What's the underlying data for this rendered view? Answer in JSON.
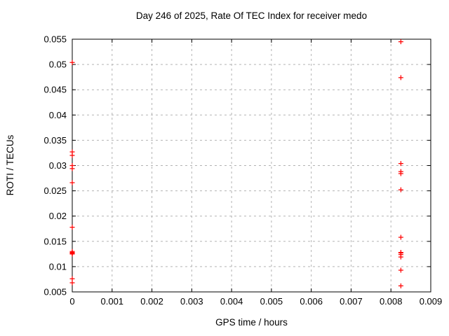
{
  "chart_data": {
    "type": "scatter",
    "title": "Day 246 of 2025, Rate Of TEC Index for receiver medo",
    "xlabel": "GPS time / hours",
    "ylabel": "ROTI / TECUs",
    "xlim": [
      0,
      0.009
    ],
    "ylim": [
      0.005,
      0.055
    ],
    "grid": true,
    "legend": "none",
    "marker": "plus",
    "marker_color": "#ff0000",
    "grid_color": "#b3b3b3",
    "axis_color": "#000000",
    "background": "#ffffff",
    "xticks": [
      {
        "value": 0,
        "label": "0"
      },
      {
        "value": 0.001,
        "label": "0.001"
      },
      {
        "value": 0.002,
        "label": "0.002"
      },
      {
        "value": 0.003,
        "label": "0.003"
      },
      {
        "value": 0.004,
        "label": "0.004"
      },
      {
        "value": 0.005,
        "label": "0.005"
      },
      {
        "value": 0.006,
        "label": "0.006"
      },
      {
        "value": 0.007,
        "label": "0.007"
      },
      {
        "value": 0.008,
        "label": "0.008"
      },
      {
        "value": 0.009,
        "label": "0.009"
      }
    ],
    "yticks": [
      {
        "value": 0.005,
        "label": "0.005"
      },
      {
        "value": 0.01,
        "label": "0.01"
      },
      {
        "value": 0.015,
        "label": "0.015"
      },
      {
        "value": 0.02,
        "label": "0.02"
      },
      {
        "value": 0.025,
        "label": "0.025"
      },
      {
        "value": 0.03,
        "label": "0.03"
      },
      {
        "value": 0.035,
        "label": "0.035"
      },
      {
        "value": 0.04,
        "label": "0.04"
      },
      {
        "value": 0.045,
        "label": "0.045"
      },
      {
        "value": 0.05,
        "label": "0.05"
      },
      {
        "value": 0.055,
        "label": "0.055"
      }
    ],
    "series": [
      {
        "name": "ROTI",
        "points": [
          [
            0,
            0.0504
          ],
          [
            0,
            0.0327
          ],
          [
            0,
            0.032
          ],
          [
            0,
            0.03
          ],
          [
            0,
            0.0294
          ],
          [
            0,
            0.0266
          ],
          [
            0,
            0.0178
          ],
          [
            0,
            0.013
          ],
          [
            0,
            0.0128
          ],
          [
            0,
            0.0127
          ],
          [
            0,
            0.0126
          ],
          [
            0,
            0.0125
          ],
          [
            0,
            0.0076
          ],
          [
            0,
            0.0068
          ],
          [
            0.00825,
            0.0545
          ],
          [
            0.00825,
            0.0474
          ],
          [
            0.00825,
            0.0304
          ],
          [
            0.00825,
            0.0288
          ],
          [
            0.00825,
            0.0284
          ],
          [
            0.00825,
            0.0252
          ],
          [
            0.00825,
            0.0158
          ],
          [
            0.00825,
            0.0128
          ],
          [
            0.00825,
            0.0127
          ],
          [
            0.00825,
            0.0124
          ],
          [
            0.00825,
            0.0119
          ],
          [
            0.00825,
            0.0093
          ],
          [
            0.00825,
            0.0062
          ]
        ]
      }
    ]
  }
}
